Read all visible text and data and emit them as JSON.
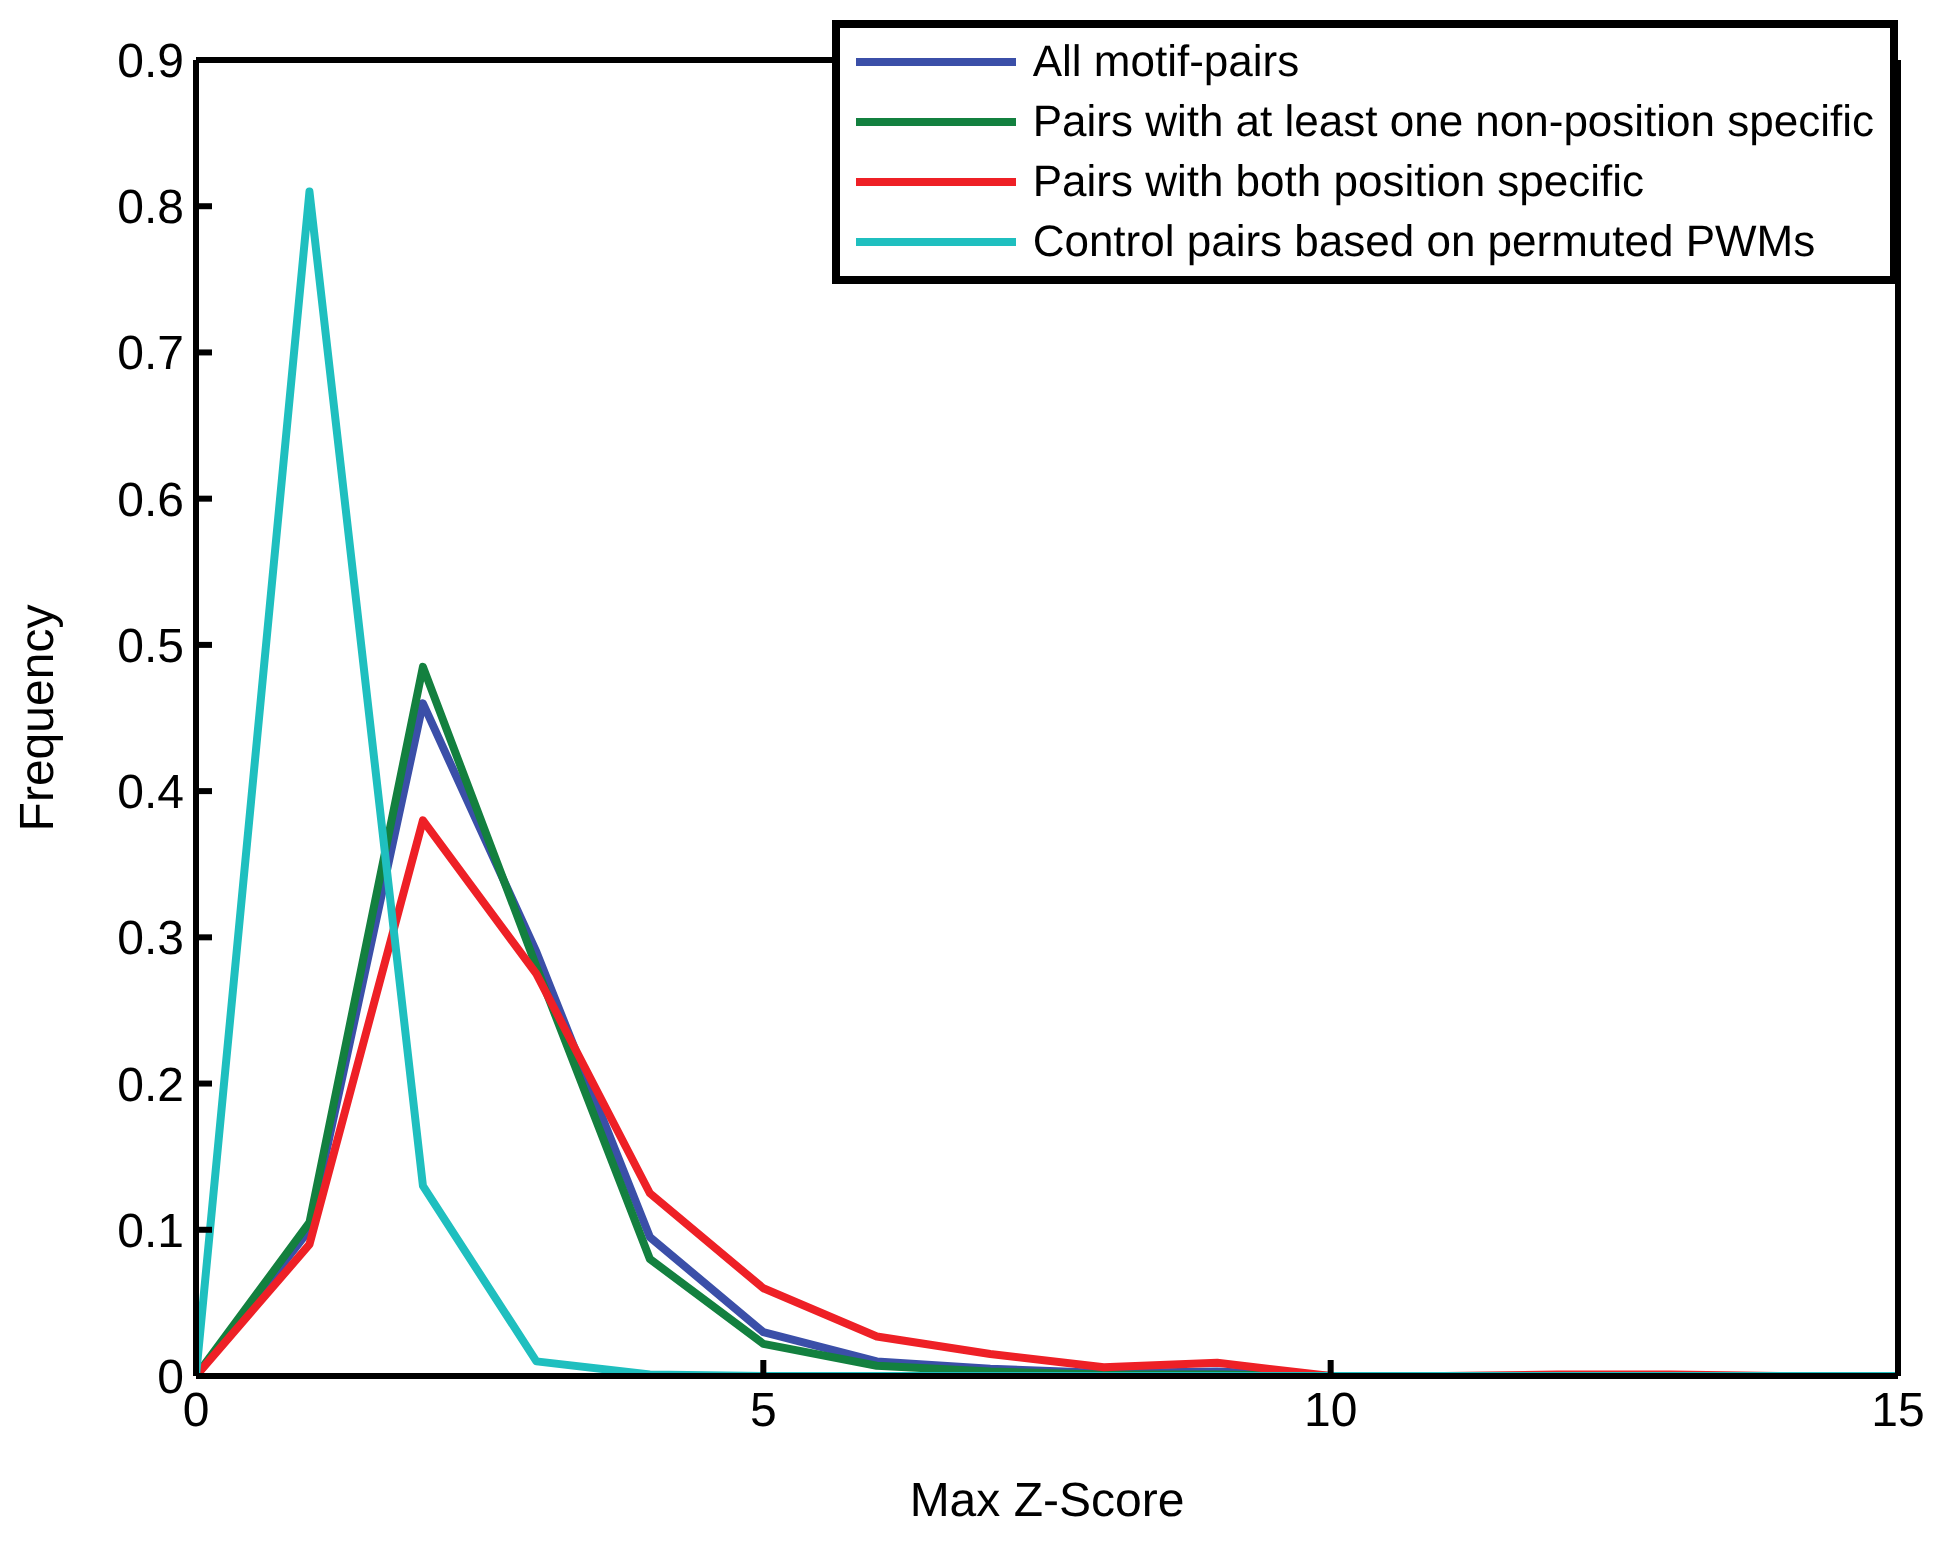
{
  "chart_data": {
    "type": "line",
    "xlabel": "Max Z-Score",
    "ylabel": "Frequency",
    "x": [
      0,
      1,
      2,
      3,
      4,
      5,
      6,
      7,
      8,
      9,
      10,
      11,
      12,
      13,
      14,
      15
    ],
    "series": [
      {
        "name": "All motif-pairs",
        "color": "#3b4fa8",
        "values": [
          0,
          0.1,
          0.46,
          0.29,
          0.095,
          0.03,
          0.01,
          0.005,
          0.002,
          0.003,
          0,
          null,
          null,
          null,
          null,
          null
        ]
      },
      {
        "name": "Pairs with at least one non-position specific",
        "color": "#13803f",
        "values": [
          0,
          0.105,
          0.485,
          0.28,
          0.08,
          0.022,
          0.007,
          0.003,
          0.001,
          0.001,
          0,
          null,
          null,
          null,
          null,
          null
        ]
      },
      {
        "name": "Pairs with both position specific",
        "color": "#ee2026",
        "values": [
          0,
          0.09,
          0.38,
          0.275,
          0.125,
          0.06,
          0.027,
          0.015,
          0.006,
          0.009,
          0,
          0,
          0.001,
          0.001,
          0,
          0
        ]
      },
      {
        "name": "Control pairs based on permuted PWMs",
        "color": "#1fbfbf",
        "values": [
          0,
          0.81,
          0.13,
          0.01,
          0.001,
          0,
          0,
          0,
          0,
          0,
          0,
          0,
          0,
          0,
          0,
          0
        ]
      }
    ],
    "xlim": [
      0,
      15
    ],
    "xticks": [
      0,
      5,
      10,
      15
    ],
    "ylim": [
      0,
      0.9
    ],
    "yticks": [
      0,
      0.1,
      0.2,
      0.3,
      0.4,
      0.5,
      0.6,
      0.7,
      0.8,
      0.9
    ],
    "grid": false,
    "legend": "top right",
    "marker": "none",
    "line_style": "solid"
  }
}
